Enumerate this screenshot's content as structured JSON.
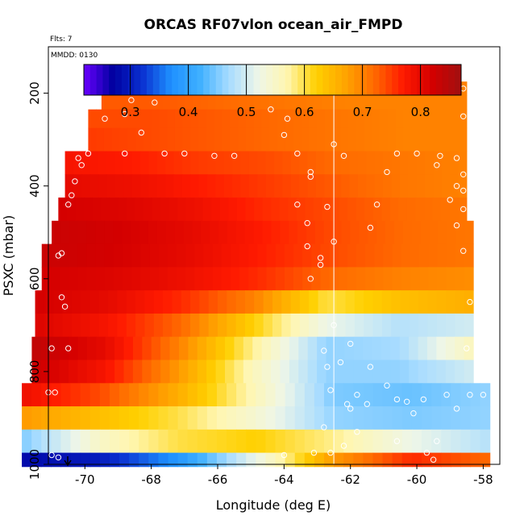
{
  "chart_data": {
    "type": "heatmap",
    "title": "ORCAS RF07vlon ocean_air_FMPD",
    "flights_note": "Flts: 7",
    "date_note": "MMDD: 0130",
    "xlabel": "Longitude (deg E)",
    "ylabel": "PSXC (mbar)",
    "xlim": [
      -71.1,
      -57.5
    ],
    "ylim": [
      1000,
      100
    ],
    "x_ticks": [
      -70,
      -68,
      -66,
      -64,
      -62,
      -60,
      -58
    ],
    "y_ticks": [
      200,
      400,
      600,
      800,
      1000
    ],
    "x_tick_labels": [
      "-70",
      "-68",
      "-66",
      "-64",
      "-62",
      "-60",
      "-58"
    ],
    "y_tick_labels": [
      "200",
      "400",
      "600",
      "800",
      "1000"
    ],
    "reference_longitude": -62.5,
    "colorbar": {
      "range": [
        0.22,
        0.87
      ],
      "ticks": [
        0.3,
        0.4,
        0.5,
        0.6,
        0.7,
        0.8
      ],
      "tick_labels": [
        "0.3",
        "0.4",
        "0.5",
        "0.6",
        "0.7",
        "0.8"
      ],
      "colors": [
        "#6a00ff",
        "#0000a0",
        "#0a2fd0",
        "#1e90ff",
        "#3fb0ff",
        "#a8dcff",
        "#eef6e8",
        "#fff6b0",
        "#ffd000",
        "#ffa500",
        "#ff6a00",
        "#ff1a00",
        "#d40000",
        "#a01010"
      ]
    },
    "pressure_bands": [
      {
        "p_top": 175,
        "p_bot": 205,
        "lon_min": -68.3,
        "lon_max": -58.5,
        "values_west_to_east": [
          0.72,
          0.73,
          0.72,
          0.71,
          0.7,
          0.7,
          0.7
        ]
      },
      {
        "p_top": 205,
        "p_bot": 235,
        "lon_min": -69.5,
        "lon_max": -58.5,
        "values_west_to_east": [
          0.73,
          0.73,
          0.72,
          0.71,
          0.7,
          0.7,
          0.7
        ]
      },
      {
        "p_top": 235,
        "p_bot": 275,
        "lon_min": -69.9,
        "lon_max": -58.5,
        "values_west_to_east": [
          0.74,
          0.74,
          0.73,
          0.72,
          0.71,
          0.7,
          0.7
        ]
      },
      {
        "p_top": 275,
        "p_bot": 325,
        "lon_min": -69.9,
        "lon_max": -58.5,
        "values_west_to_east": [
          0.75,
          0.74,
          0.73,
          0.72,
          0.71,
          0.7,
          0.7
        ]
      },
      {
        "p_top": 325,
        "p_bot": 375,
        "lon_min": -70.6,
        "lon_max": -58.5,
        "values_west_to_east": [
          0.78,
          0.77,
          0.75,
          0.74,
          0.72,
          0.71,
          0.7
        ]
      },
      {
        "p_top": 375,
        "p_bot": 425,
        "lon_min": -70.6,
        "lon_max": -58.5,
        "values_west_to_east": [
          0.8,
          0.79,
          0.77,
          0.75,
          0.73,
          0.71,
          0.7
        ]
      },
      {
        "p_top": 425,
        "p_bot": 475,
        "lon_min": -70.8,
        "lon_max": -58.5,
        "values_west_to_east": [
          0.82,
          0.81,
          0.79,
          0.76,
          0.74,
          0.72,
          0.71
        ]
      },
      {
        "p_top": 475,
        "p_bot": 525,
        "lon_min": -71.0,
        "lon_max": -58.3,
        "values_west_to_east": [
          0.83,
          0.82,
          0.8,
          0.77,
          0.74,
          0.72,
          0.71
        ]
      },
      {
        "p_top": 525,
        "p_bot": 575,
        "lon_min": -71.3,
        "lon_max": -58.3,
        "values_west_to_east": [
          0.83,
          0.82,
          0.8,
          0.77,
          0.74,
          0.72,
          0.71
        ]
      },
      {
        "p_top": 575,
        "p_bot": 625,
        "lon_min": -71.3,
        "lon_max": -58.3,
        "values_west_to_east": [
          0.82,
          0.81,
          0.79,
          0.76,
          0.72,
          0.7,
          0.69
        ]
      },
      {
        "p_top": 625,
        "p_bot": 675,
        "lon_min": -71.5,
        "lon_max": -58.3,
        "values_west_to_east": [
          0.82,
          0.8,
          0.76,
          0.7,
          0.6,
          0.64,
          0.66
        ]
      },
      {
        "p_top": 675,
        "p_bot": 725,
        "lon_min": -71.5,
        "lon_max": -58.3,
        "values_west_to_east": [
          0.81,
          0.78,
          0.72,
          0.62,
          0.52,
          0.48,
          0.5
        ]
      },
      {
        "p_top": 725,
        "p_bot": 775,
        "lon_min": -71.6,
        "lon_max": -58.3,
        "values_west_to_east": [
          0.84,
          0.8,
          0.7,
          0.58,
          0.46,
          0.47,
          0.56
        ]
      },
      {
        "p_top": 775,
        "p_bot": 825,
        "lon_min": -71.6,
        "lon_max": -58.3,
        "values_west_to_east": [
          0.83,
          0.78,
          0.68,
          0.56,
          0.46,
          0.46,
          0.5
        ]
      },
      {
        "p_top": 825,
        "p_bot": 875,
        "lon_min": -71.9,
        "lon_max": -57.8,
        "values_west_to_east": [
          0.79,
          0.74,
          0.66,
          0.56,
          0.45,
          0.44,
          0.46
        ]
      },
      {
        "p_top": 875,
        "p_bot": 925,
        "lon_min": -71.9,
        "lon_max": -57.8,
        "values_west_to_east": [
          0.68,
          0.64,
          0.6,
          0.54,
          0.46,
          0.45,
          0.46
        ]
      },
      {
        "p_top": 925,
        "p_bot": 975,
        "lon_min": -71.9,
        "lon_max": -57.8,
        "values_west_to_east": [
          0.45,
          0.55,
          0.6,
          0.62,
          0.58,
          0.52,
          0.48
        ]
      },
      {
        "p_top": 975,
        "p_bot": 1005,
        "lon_min": -71.9,
        "lon_max": -57.8,
        "values_west_to_east": [
          0.28,
          0.3,
          0.38,
          0.52,
          0.68,
          0.76,
          0.72
        ]
      }
    ],
    "observation_points": [
      {
        "lon": -68.3,
        "p": 185
      },
      {
        "lon": -67.6,
        "p": 178
      },
      {
        "lon": -66.9,
        "p": 183
      },
      {
        "lon": -66.3,
        "p": 178
      },
      {
        "lon": -65.7,
        "p": 182
      },
      {
        "lon": -62.5,
        "p": 190
      },
      {
        "lon": -62.0,
        "p": 185
      },
      {
        "lon": -61.6,
        "p": 185
      },
      {
        "lon": -61.2,
        "p": 185
      },
      {
        "lon": -60.8,
        "p": 185
      },
      {
        "lon": -60.4,
        "p": 185
      },
      {
        "lon": -60.0,
        "p": 185
      },
      {
        "lon": -59.6,
        "p": 185
      },
      {
        "lon": -58.9,
        "p": 190
      },
      {
        "lon": -58.6,
        "p": 190
      },
      {
        "lon": -68.6,
        "p": 215
      },
      {
        "lon": -67.9,
        "p": 220
      },
      {
        "lon": -69.4,
        "p": 255
      },
      {
        "lon": -68.8,
        "p": 245
      },
      {
        "lon": -64.4,
        "p": 235
      },
      {
        "lon": -63.9,
        "p": 255
      },
      {
        "lon": -58.6,
        "p": 250
      },
      {
        "lon": -68.3,
        "p": 285
      },
      {
        "lon": -64.0,
        "p": 290
      },
      {
        "lon": -62.5,
        "p": 310
      },
      {
        "lon": -70.2,
        "p": 340
      },
      {
        "lon": -69.9,
        "p": 330
      },
      {
        "lon": -68.8,
        "p": 330
      },
      {
        "lon": -67.6,
        "p": 330
      },
      {
        "lon": -67.0,
        "p": 330
      },
      {
        "lon": -66.1,
        "p": 335
      },
      {
        "lon": -65.5,
        "p": 335
      },
      {
        "lon": -63.6,
        "p": 330
      },
      {
        "lon": -62.2,
        "p": 335
      },
      {
        "lon": -60.6,
        "p": 330
      },
      {
        "lon": -60.0,
        "p": 330
      },
      {
        "lon": -59.3,
        "p": 335
      },
      {
        "lon": -58.8,
        "p": 340
      },
      {
        "lon": -70.1,
        "p": 355
      },
      {
        "lon": -59.4,
        "p": 355
      },
      {
        "lon": -63.2,
        "p": 370
      },
      {
        "lon": -63.2,
        "p": 380
      },
      {
        "lon": -60.9,
        "p": 370
      },
      {
        "lon": -58.6,
        "p": 375
      },
      {
        "lon": -70.3,
        "p": 390
      },
      {
        "lon": -58.8,
        "p": 400
      },
      {
        "lon": -58.6,
        "p": 410
      },
      {
        "lon": -70.4,
        "p": 420
      },
      {
        "lon": -70.5,
        "p": 440
      },
      {
        "lon": -63.6,
        "p": 440
      },
      {
        "lon": -62.7,
        "p": 445
      },
      {
        "lon": -61.2,
        "p": 440
      },
      {
        "lon": -59.0,
        "p": 430
      },
      {
        "lon": -58.6,
        "p": 450
      },
      {
        "lon": -63.3,
        "p": 480
      },
      {
        "lon": -61.4,
        "p": 490
      },
      {
        "lon": -58.8,
        "p": 485
      },
      {
        "lon": -62.5,
        "p": 520
      },
      {
        "lon": -63.3,
        "p": 530
      },
      {
        "lon": -70.8,
        "p": 550
      },
      {
        "lon": -70.7,
        "p": 545
      },
      {
        "lon": -62.9,
        "p": 555
      },
      {
        "lon": -62.9,
        "p": 570
      },
      {
        "lon": -58.6,
        "p": 540
      },
      {
        "lon": -63.2,
        "p": 600
      },
      {
        "lon": -70.7,
        "p": 640
      },
      {
        "lon": -70.6,
        "p": 660
      },
      {
        "lon": -58.4,
        "p": 650
      },
      {
        "lon": -62.5,
        "p": 700
      },
      {
        "lon": -71.0,
        "p": 750
      },
      {
        "lon": -70.5,
        "p": 750
      },
      {
        "lon": -62.8,
        "p": 755
      },
      {
        "lon": -62.0,
        "p": 740
      },
      {
        "lon": -58.5,
        "p": 750
      },
      {
        "lon": -62.7,
        "p": 790
      },
      {
        "lon": -62.3,
        "p": 780
      },
      {
        "lon": -61.4,
        "p": 790
      },
      {
        "lon": -71.1,
        "p": 845
      },
      {
        "lon": -70.9,
        "p": 845
      },
      {
        "lon": -62.6,
        "p": 840
      },
      {
        "lon": -61.8,
        "p": 850
      },
      {
        "lon": -60.9,
        "p": 830
      },
      {
        "lon": -62.1,
        "p": 870
      },
      {
        "lon": -62.0,
        "p": 880
      },
      {
        "lon": -61.5,
        "p": 870
      },
      {
        "lon": -60.6,
        "p": 860
      },
      {
        "lon": -60.3,
        "p": 865
      },
      {
        "lon": -59.8,
        "p": 860
      },
      {
        "lon": -59.1,
        "p": 850
      },
      {
        "lon": -58.4,
        "p": 850
      },
      {
        "lon": -58.0,
        "p": 850
      },
      {
        "lon": -60.1,
        "p": 890
      },
      {
        "lon": -58.8,
        "p": 880
      },
      {
        "lon": -62.8,
        "p": 920
      },
      {
        "lon": -61.8,
        "p": 930
      },
      {
        "lon": -60.6,
        "p": 950
      },
      {
        "lon": -59.4,
        "p": 950
      },
      {
        "lon": -62.2,
        "p": 960
      },
      {
        "lon": -63.1,
        "p": 975
      },
      {
        "lon": -62.6,
        "p": 975
      },
      {
        "lon": -59.7,
        "p": 975
      },
      {
        "lon": -59.5,
        "p": 990
      },
      {
        "lon": -71.0,
        "p": 980
      },
      {
        "lon": -70.8,
        "p": 985
      },
      {
        "lon": -64.0,
        "p": 980
      }
    ]
  }
}
